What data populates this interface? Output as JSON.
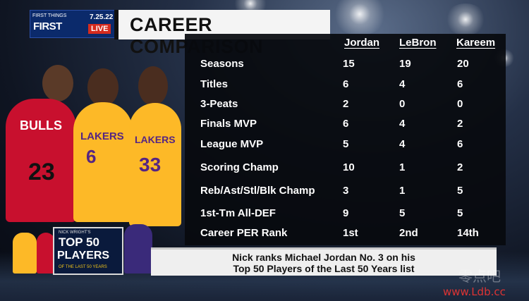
{
  "broadcast": {
    "show_logo_small": "FIRST THINGS",
    "show_logo_main": "FIRST",
    "date": "7.25.22",
    "live_label": "LIVE"
  },
  "title": "CAREER COMPARISON",
  "table": {
    "columns": [
      "Jordan",
      "LeBron",
      "Kareem"
    ],
    "rows": [
      {
        "label": "Seasons",
        "values": [
          "15",
          "19",
          "20"
        ]
      },
      {
        "label": "Titles",
        "values": [
          "6",
          "4",
          "6"
        ]
      },
      {
        "label": "3-Peats",
        "values": [
          "2",
          "0",
          "0"
        ]
      },
      {
        "label": "Finals MVP",
        "values": [
          "6",
          "4",
          "2"
        ]
      },
      {
        "label": "League MVP",
        "values": [
          "5",
          "4",
          "6"
        ]
      },
      {
        "label": "Scoring Champ",
        "values": [
          "10",
          "1",
          "2"
        ]
      },
      {
        "label": "Reb/Ast/Stl/Blk Champ",
        "values": [
          "3",
          "1",
          "5"
        ]
      },
      {
        "label": "1st-Tm All-DEF",
        "values": [
          "9",
          "5",
          "5"
        ]
      },
      {
        "label": "Career PER Rank",
        "values": [
          "1st",
          "2nd",
          "14th"
        ]
      }
    ]
  },
  "players": {
    "jordan": {
      "team_text": "BULLS",
      "number": "23",
      "color": "#c8102e"
    },
    "lebron": {
      "team_text": "LAKERS",
      "number": "6",
      "color": "#fdb927"
    },
    "kareem": {
      "team_text": "LAKERS",
      "number": "33",
      "color": "#fdb927"
    }
  },
  "badge": {
    "small_text": "NICK WRIGHT'S",
    "top_text": "TOP 50",
    "players_text": "PLAYERS",
    "sub_text": "OF THE LAST 50 YEARS"
  },
  "caption": {
    "line1": "Nick ranks Michael Jordan No. 3 on his",
    "line2": "Top 50 Players of the Last 50 Years list"
  },
  "watermark": {
    "chinese": "零点吧",
    "url": "www.Ldb.cc"
  }
}
